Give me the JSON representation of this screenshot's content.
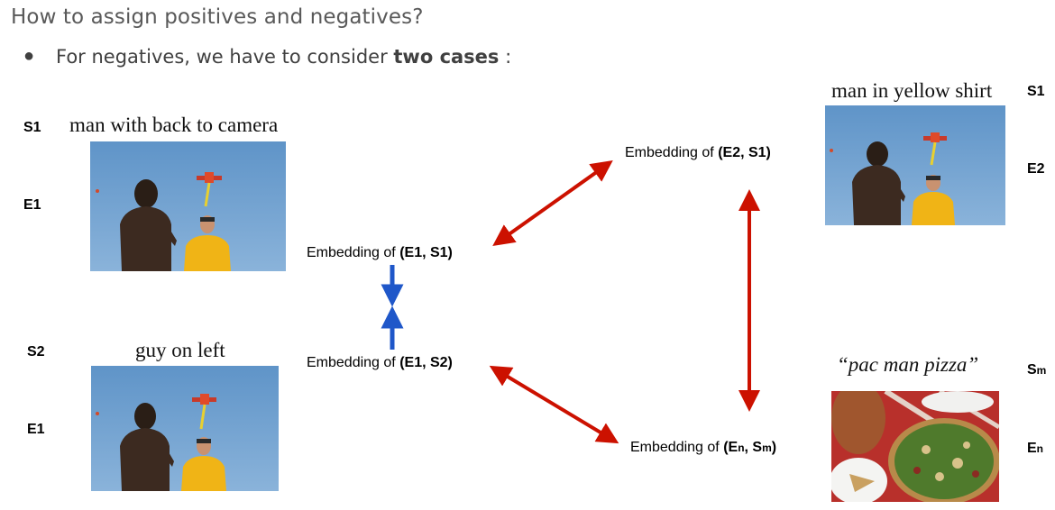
{
  "header": {
    "title": "How to assign positives and negatives?",
    "bullet_prefix": "For negatives, we have to consider ",
    "bullet_bold": "two cases",
    "bullet_suffix": " :"
  },
  "labels": {
    "s1_left": "S1",
    "e1_top": "E1",
    "s2_left": "S2",
    "e1_bottom": "E1",
    "s1_right": "S1",
    "e2_right": "E2",
    "sm_right": "Sm",
    "en_right": "En"
  },
  "captions": {
    "top_left": "man with back to camera",
    "bottom_left": "guy on left",
    "top_right": "man in yellow shirt",
    "bottom_right": "“pac man pizza”"
  },
  "embeddings": {
    "prefix": "Embedding of ",
    "e1s1": "(E1, S1)",
    "e1s2": "(E1, S2)",
    "e2s1": "(E2, S1)",
    "ensm": "(En, Sm)"
  },
  "colors": {
    "positive_arrow": "#1f57c9",
    "negative_arrow": "#cc1100"
  }
}
